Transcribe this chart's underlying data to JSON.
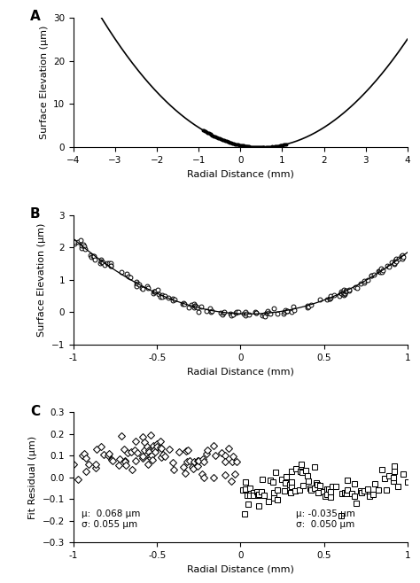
{
  "panel_A": {
    "xlim": [
      -4,
      4
    ],
    "ylim": [
      0,
      30
    ],
    "yticks": [
      0,
      10,
      20,
      30
    ],
    "xticks": [
      -4,
      -3,
      -2,
      -1,
      0,
      1,
      2,
      3,
      4
    ],
    "xlabel": "Radial Distance (mm)",
    "ylabel": "Surface Elevation (μm)",
    "label": "A",
    "curve_a": 1.6,
    "curve_b": 0.3,
    "curve_c": 0.05
  },
  "panel_B": {
    "xlim": [
      -1,
      1
    ],
    "ylim": [
      -1,
      3
    ],
    "yticks": [
      -1,
      0,
      1,
      2,
      3
    ],
    "xticks": [
      -1,
      -0.5,
      0,
      0.5,
      1
    ],
    "xlabel": "Radial Distance (mm)",
    "ylabel": "Surface Elevation (μm)",
    "label": "B"
  },
  "panel_C": {
    "xlim": [
      -1,
      1
    ],
    "ylim": [
      -0.3,
      0.3
    ],
    "yticks": [
      -0.3,
      -0.2,
      -0.1,
      0.0,
      0.1,
      0.2,
      0.3
    ],
    "xticks": [
      -1,
      -0.5,
      0,
      0.5,
      1
    ],
    "xlabel": "Radial Distance (mm)",
    "ylabel": "Fit Residual (μm)",
    "label": "C",
    "annotation_left": "μ:  0.068 μm\nσ: 0.055 μm",
    "annotation_right": "μ: -0.035 μm\nσ:  0.050 μm"
  },
  "background_color": "#ffffff",
  "line_color": "#000000"
}
